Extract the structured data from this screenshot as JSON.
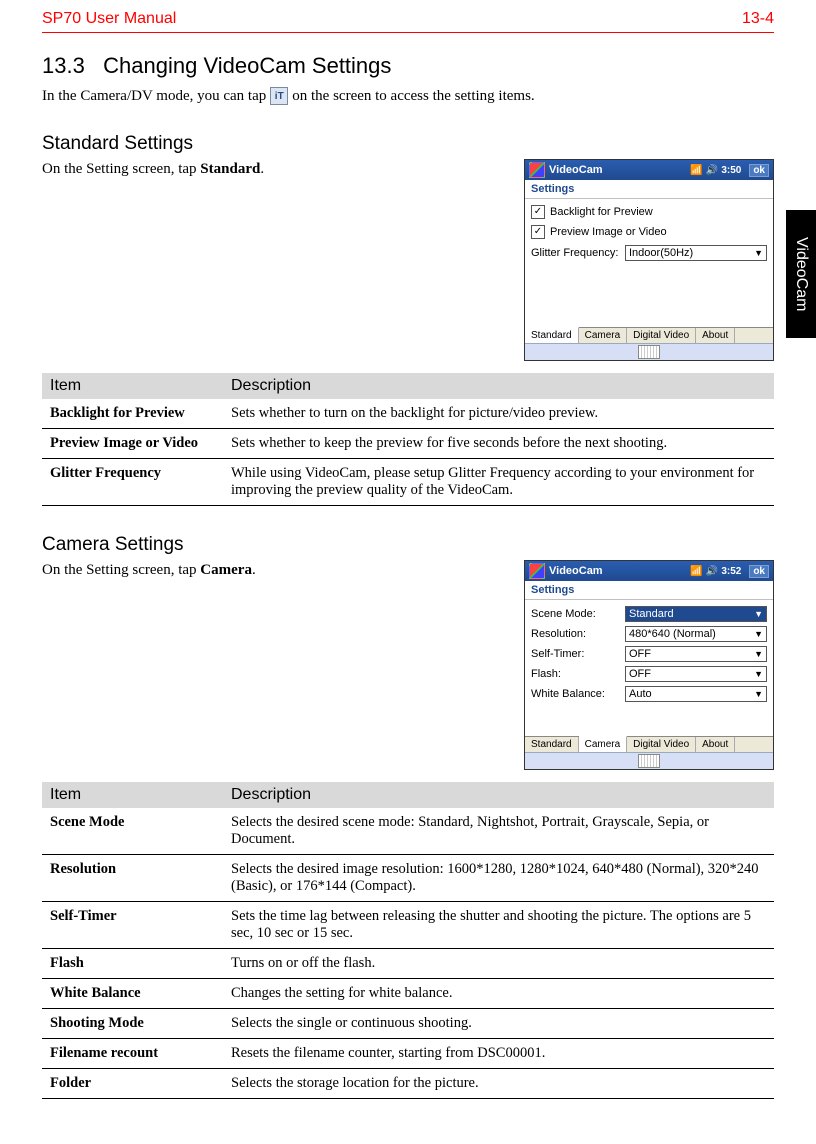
{
  "header": {
    "title": "SP70 User Manual",
    "page_num": "13-4"
  },
  "side_tab": "VideoCam",
  "section": {
    "number": "13.3",
    "title": "Changing VideoCam Settings",
    "intro_pre": "In the Camera/DV mode, you can tap ",
    "intro_post": "on the screen to access the setting items."
  },
  "standard": {
    "heading": "Standard Settings",
    "instruction_pre": "On the Setting screen, tap ",
    "instruction_bold": "Standard",
    "instruction_post": ".",
    "table_headers": {
      "item": "Item",
      "desc": "Description"
    },
    "rows": [
      {
        "item": "Backlight for Preview",
        "desc": "Sets whether to turn on the backlight for picture/video preview."
      },
      {
        "item": "Preview Image or Video",
        "desc": "Sets whether to keep the preview for five seconds before the next shooting."
      },
      {
        "item": "Glitter Frequency",
        "desc": "While using VideoCam, please setup Glitter Frequency according to your environment for improving the preview quality of the VideoCam."
      }
    ],
    "pda": {
      "title": "VideoCam",
      "time": "3:50",
      "ok": "ok",
      "settings_label": "Settings",
      "chk1": "Backlight for Preview",
      "chk2": "Preview Image or Video",
      "field_label": "Glitter Frequency:",
      "field_value": "Indoor(50Hz)",
      "tabs": [
        "Standard",
        "Camera",
        "Digital Video",
        "About"
      ],
      "active_tab": 0
    }
  },
  "camera": {
    "heading": "Camera Settings",
    "instruction_pre": "On the Setting screen, tap ",
    "instruction_bold": "Camera",
    "instruction_post": ".",
    "table_headers": {
      "item": "Item",
      "desc": "Description"
    },
    "rows": [
      {
        "item": "Scene Mode",
        "desc": "Selects the desired scene mode: Standard, Nightshot, Portrait, Grayscale, Sepia, or Document."
      },
      {
        "item": "Resolution",
        "desc": "Selects the desired image resolution: 1600*1280, 1280*1024, 640*480 (Normal), 320*240 (Basic), or 176*144 (Compact)."
      },
      {
        "item": "Self-Timer",
        "desc": "Sets the time lag between releasing the shutter and shooting the picture. The options are 5 sec, 10 sec or 15 sec."
      },
      {
        "item": "Flash",
        "desc": "Turns on or off the flash."
      },
      {
        "item": "White Balance",
        "desc": "Changes the setting for white balance."
      },
      {
        "item": "Shooting Mode",
        "desc": "Selects the single or continuous shooting."
      },
      {
        "item": "Filename recount",
        "desc": "Resets the filename counter, starting from DSC00001."
      },
      {
        "item": "Folder",
        "desc": "Selects the storage location for the picture."
      }
    ],
    "pda": {
      "title": "VideoCam",
      "time": "3:52",
      "ok": "ok",
      "settings_label": "Settings",
      "fields": [
        {
          "label": "Scene Mode:",
          "value": "Standard",
          "selected": true
        },
        {
          "label": "Resolution:",
          "value": "480*640 (Normal)"
        },
        {
          "label": "Self-Timer:",
          "value": "OFF"
        },
        {
          "label": "Flash:",
          "value": "OFF"
        },
        {
          "label": "White Balance:",
          "value": "Auto"
        }
      ],
      "tabs": [
        "Standard",
        "Camera",
        "Digital Video",
        "About"
      ],
      "active_tab": 1
    }
  }
}
